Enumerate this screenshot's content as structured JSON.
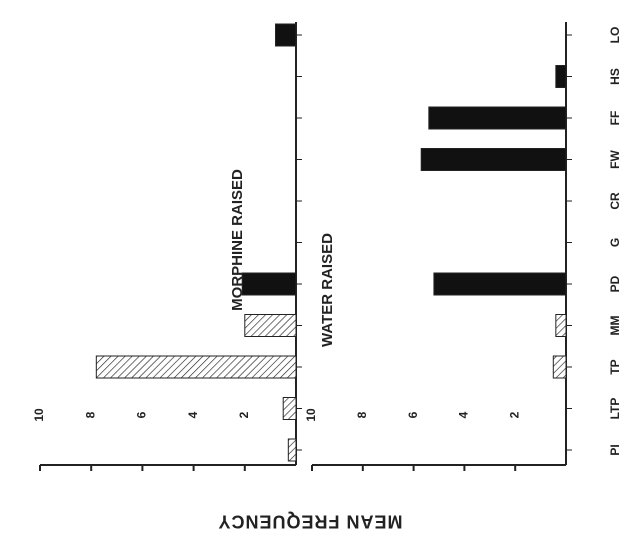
{
  "chart_data": [
    {
      "type": "bar",
      "title": "MORPHINE RAISED",
      "ylabel": "MEAN FREQUENCY",
      "categories": [
        "PI",
        "LTP",
        "TP",
        "MM",
        "PD",
        "G",
        "CR",
        "FW",
        "FF",
        "HS",
        "LO"
      ],
      "values": [
        0.3,
        0.5,
        7.8,
        2.0,
        2.1,
        0,
        0,
        0,
        0,
        0,
        0.8
      ],
      "fills": [
        "hatch",
        "hatch",
        "hatch",
        "hatch",
        "black",
        "black",
        "black",
        "black",
        "black",
        "black",
        "black"
      ],
      "ylim": [
        0,
        10
      ],
      "yticks": [
        2,
        4,
        6,
        8,
        10
      ]
    },
    {
      "type": "bar",
      "title": "WATER RAISED",
      "categories": [
        "PI",
        "LTP",
        "TP",
        "MM",
        "PD",
        "G",
        "CR",
        "FW",
        "FF",
        "HS",
        "LO"
      ],
      "values": [
        0,
        0,
        0.5,
        0.4,
        5.2,
        0,
        0,
        5.7,
        5.4,
        0.4,
        0
      ],
      "fills": [
        "hatch",
        "hatch",
        "hatch",
        "hatch",
        "black",
        "black",
        "black",
        "black",
        "black",
        "black",
        "black"
      ],
      "ylim": [
        0,
        10
      ],
      "yticks": [
        2,
        4,
        6,
        8,
        10
      ]
    }
  ]
}
